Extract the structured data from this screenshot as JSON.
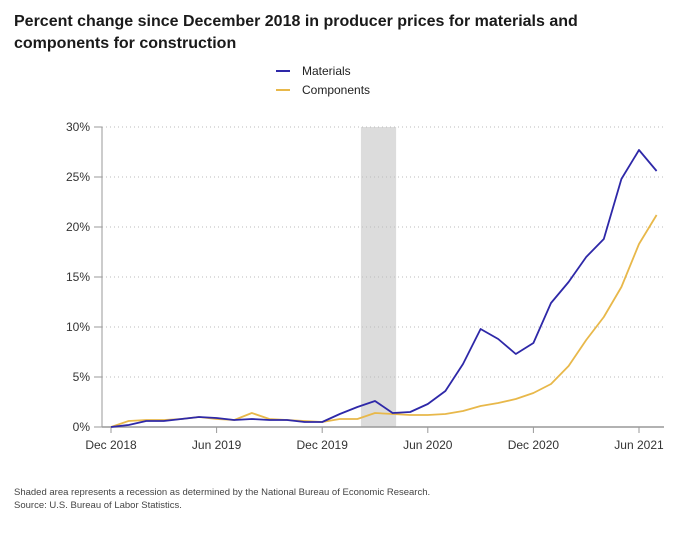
{
  "chart_data": {
    "type": "line",
    "title": "Percent change since December 2018 in producer prices for materials and components for construction",
    "xlabel": "",
    "ylabel": "",
    "ylim": [
      0,
      30
    ],
    "yticks": [
      0,
      5,
      10,
      15,
      20,
      25,
      30
    ],
    "ytick_labels": [
      "0%",
      "5%",
      "10%",
      "15%",
      "20%",
      "25%",
      "30%"
    ],
    "xtick_labels": [
      {
        "index": 0,
        "label": "Dec 2018"
      },
      {
        "index": 6,
        "label": "Jun 2019"
      },
      {
        "index": 12,
        "label": "Dec 2019"
      },
      {
        "index": 18,
        "label": "Jun 2020"
      },
      {
        "index": 24,
        "label": "Dec 2020"
      },
      {
        "index": 30,
        "label": "Jun 2021"
      }
    ],
    "x": [
      "Dec 2018",
      "Jan 2019",
      "Feb 2019",
      "Mar 2019",
      "Apr 2019",
      "May 2019",
      "Jun 2019",
      "Jul 2019",
      "Aug 2019",
      "Sep 2019",
      "Oct 2019",
      "Nov 2019",
      "Dec 2019",
      "Jan 2020",
      "Feb 2020",
      "Mar 2020",
      "Apr 2020",
      "May 2020",
      "Jun 2020",
      "Jul 2020",
      "Aug 2020",
      "Sep 2020",
      "Oct 2020",
      "Nov 2020",
      "Dec 2020",
      "Jan 2021",
      "Feb 2021",
      "Mar 2021",
      "Apr 2021",
      "May 2021",
      "Jun 2021",
      "Jul 2021"
    ],
    "series": [
      {
        "name": "Materials",
        "color": "#2e28a8",
        "values": [
          0,
          0.2,
          0.6,
          0.6,
          0.8,
          1.0,
          0.9,
          0.7,
          0.8,
          0.7,
          0.7,
          0.5,
          0.5,
          1.3,
          2.0,
          2.6,
          1.4,
          1.5,
          2.3,
          3.6,
          6.3,
          9.8,
          8.8,
          7.3,
          8.4,
          12.4,
          14.5,
          17.0,
          18.8,
          24.8,
          27.7,
          25.6
        ]
      },
      {
        "name": "Components",
        "color": "#e8b84a",
        "values": [
          0,
          0.6,
          0.7,
          0.7,
          0.8,
          1.0,
          0.8,
          0.7,
          1.4,
          0.8,
          0.7,
          0.6,
          0.5,
          0.8,
          0.8,
          1.4,
          1.3,
          1.2,
          1.2,
          1.3,
          1.6,
          2.1,
          2.4,
          2.8,
          3.4,
          4.3,
          6.1,
          8.7,
          11.0,
          14.0,
          18.3,
          21.2
        ]
      }
    ],
    "recession": {
      "start_index": 14.2,
      "end_index": 16.2,
      "color": "#dcdcdc"
    },
    "grid": true,
    "legend_position": "top-center"
  },
  "legend": [
    {
      "label": "Materials",
      "color": "#2e28a8"
    },
    {
      "label": "Components",
      "color": "#e8b84a"
    }
  ],
  "notes": {
    "line1": "Shaded area represents a recession as determined by the National Bureau of Economic Research.",
    "line2": "Source: U.S. Bureau of Labor Statistics."
  }
}
